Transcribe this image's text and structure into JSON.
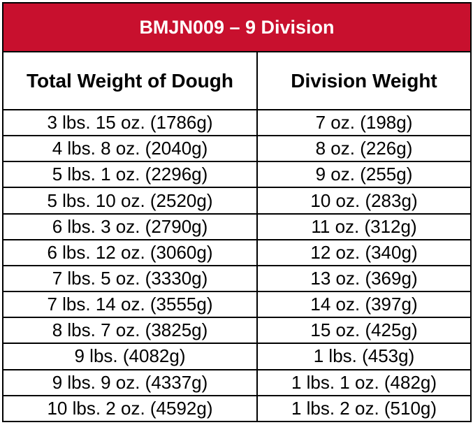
{
  "title": "BMJN009 – 9 Division",
  "table": {
    "header": [
      "Total Weight of Dough",
      "Division Weight"
    ],
    "rows": [
      [
        "3 lbs. 15 oz. (1786g)",
        "7 oz. (198g)"
      ],
      [
        "4 lbs. 8 oz. (2040g)",
        "8 oz. (226g)"
      ],
      [
        "5 lbs. 1 oz. (2296g)",
        "9 oz. (255g)"
      ],
      [
        "5 lbs. 10 oz. (2520g)",
        "10 oz. (283g)"
      ],
      [
        "6 lbs. 3 oz. (2790g)",
        "11 oz. (312g)"
      ],
      [
        "6 lbs. 12 oz. (3060g)",
        "12 oz. (340g)"
      ],
      [
        "7 lbs. 5 oz. (3330g)",
        "13 oz. (369g)"
      ],
      [
        "7 lbs. 14 oz. (3555g)",
        "14 oz. (397g)"
      ],
      [
        "8 lbs. 7 oz. (3825g)",
        "15 oz. (425g)"
      ],
      [
        "9 lbs. (4082g)",
        "1 lbs. (453g)"
      ],
      [
        "9 lbs. 9 oz. (4337g)",
        "1 lbs. 1 oz. (482g)"
      ],
      [
        "10 lbs. 2 oz. (4592g)",
        "1 lbs. 2 oz. (510g)"
      ]
    ]
  }
}
